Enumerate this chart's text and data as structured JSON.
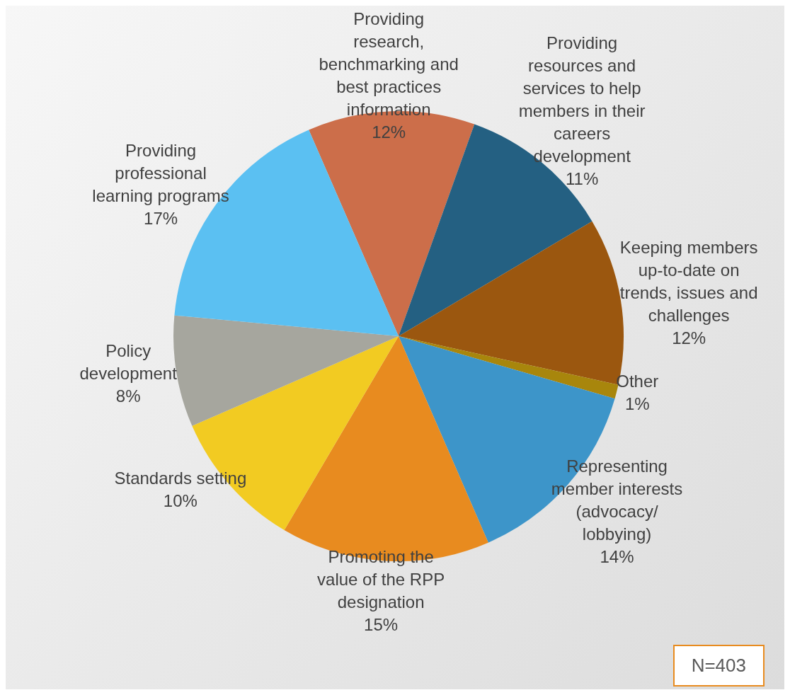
{
  "chart_data": {
    "type": "pie",
    "categories": [
      "Providing research, benchmarking and best practices information",
      "Providing resources and services to help members in their careers development",
      "Keeping members up-to-date on trends, issues and challenges",
      "Other",
      "Representing member interests (advocacy/ lobbying)",
      "Promoting the value of the RPP designation",
      "Standards setting",
      "Policy development",
      "Providing professional learning programs"
    ],
    "values": [
      12,
      11,
      12,
      1,
      14,
      15,
      10,
      8,
      17
    ],
    "value_labels": [
      "12%",
      "11%",
      "12%",
      "1%",
      "14%",
      "15%",
      "10%",
      "8%",
      "17%"
    ],
    "colors": [
      "#cc6e4a",
      "#246082",
      "#9b570f",
      "#a8860c",
      "#3d95c9",
      "#e88b1f",
      "#f2cb22",
      "#a6a69e",
      "#5bc0f2"
    ],
    "legend": false,
    "annotations": [
      "N=403"
    ]
  }
}
